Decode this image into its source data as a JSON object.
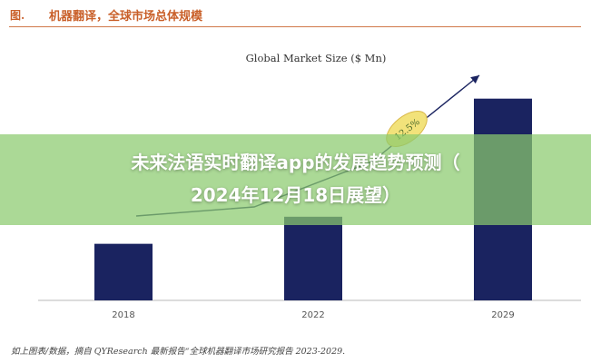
{
  "figure": {
    "label": "图.",
    "title": "机器翻译，全球市场总体规模"
  },
  "overlay": {
    "line1": "未来法语实时翻译app的发展趋势预测（",
    "line2": "2024年12月18日展望）"
  },
  "source": "如上图表/数据，摘自 QYResearch 最新报告“全球机器翻译市场研究报告 2023-2029.",
  "colors": {
    "bar": "#1a2360",
    "accent": "#c9602a",
    "band": "#8bcb6e",
    "cagr_badge": "#f2e27a"
  },
  "chart_data": {
    "type": "bar",
    "title": "Global Market Size ($ Mn)",
    "categories": [
      "2018",
      "2022",
      "2029"
    ],
    "values": [
      23,
      34,
      82
    ],
    "ylim": [
      0,
      90
    ],
    "grid": false,
    "annotation": {
      "text": "12.5%",
      "from_category": "2018",
      "to_category": "2029"
    }
  }
}
